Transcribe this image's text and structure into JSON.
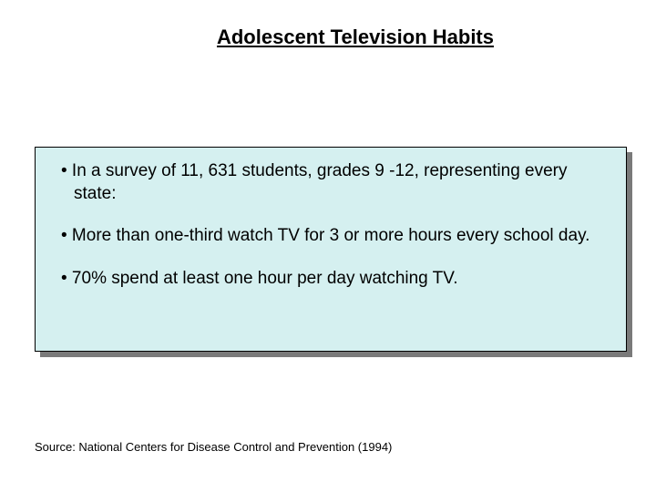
{
  "slide": {
    "title": "Adolescent Television Habits",
    "bullets": [
      "• In a survey of 11, 631 students, grades 9 -12, representing every state:",
      "• More than one-third watch TV for 3 or more hours every school day.",
      "• 70% spend at least one hour per day watching TV."
    ],
    "source": "Source: National Centers for Disease Control and Prevention (1994)"
  },
  "styling": {
    "background_color": "#ffffff",
    "box_fill_color": "#d5f0f0",
    "box_border_color": "#000000",
    "shadow_color": "#7a7a7a",
    "text_color": "#000000",
    "title_fontsize": 22,
    "bullet_fontsize": 19,
    "source_fontsize": 13,
    "font_family": "Arial"
  }
}
